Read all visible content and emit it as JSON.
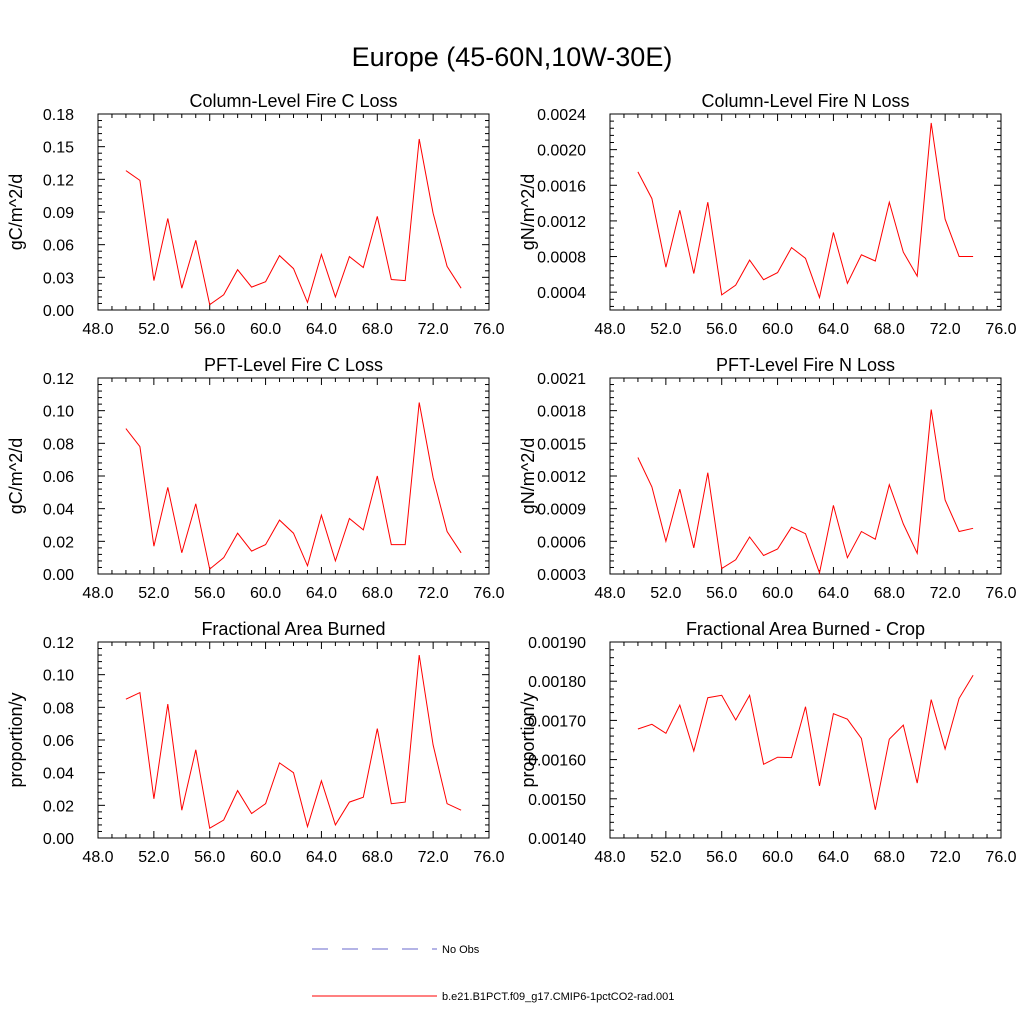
{
  "figure": {
    "title": "Europe (45-60N,10W-30E)"
  },
  "legend": {
    "items": [
      {
        "label": "No Obs",
        "color": "#6a6acd",
        "dash": true
      },
      {
        "label": "b.e21.B1PCT.f09_g17.CMIP6-1pctCO2-rad.001",
        "color": "#ff0000",
        "dash": false
      }
    ]
  },
  "chart_data": [
    {
      "type": "line",
      "title": "Column-Level Fire C Loss",
      "ylabel": "gC/m^2/d",
      "xlim": [
        48,
        76
      ],
      "ylim": [
        0,
        0.18
      ],
      "xticks": [
        "48.0",
        "52.0",
        "56.0",
        "60.0",
        "64.0",
        "68.0",
        "72.0",
        "76.0"
      ],
      "yticks": [
        "0.00",
        "0.03",
        "0.06",
        "0.09",
        "0.12",
        "0.15",
        "0.18"
      ],
      "x": [
        50,
        51,
        52,
        53,
        54,
        55,
        56,
        57,
        58,
        59,
        60,
        61,
        62,
        63,
        64,
        65,
        66,
        67,
        68,
        69,
        70,
        71,
        72,
        73,
        74
      ],
      "series": [
        {
          "name": "b.e21.B1PCT.f09_g17.CMIP6-1pctCO2-rad.001",
          "color": "#ff0000",
          "values": [
            0.128,
            0.119,
            0.027,
            0.084,
            0.02,
            0.064,
            0.005,
            0.014,
            0.037,
            0.021,
            0.026,
            0.05,
            0.038,
            0.007,
            0.051,
            0.012,
            0.049,
            0.039,
            0.086,
            0.028,
            0.027,
            0.157,
            0.089,
            0.04,
            0.02
          ]
        }
      ]
    },
    {
      "type": "line",
      "title": "Column-Level Fire N Loss",
      "ylabel": "gN/m^2/d",
      "xlim": [
        48,
        76
      ],
      "ylim": [
        0.0002,
        0.0024
      ],
      "xticks": [
        "48.0",
        "52.0",
        "56.0",
        "60.0",
        "64.0",
        "68.0",
        "72.0",
        "76.0"
      ],
      "yticks": [
        "0.0004",
        "0.0008",
        "0.0012",
        "0.0016",
        "0.0020",
        "0.0024"
      ],
      "x": [
        50,
        51,
        52,
        53,
        54,
        55,
        56,
        57,
        58,
        59,
        60,
        61,
        62,
        63,
        64,
        65,
        66,
        67,
        68,
        69,
        70,
        71,
        72,
        73,
        74
      ],
      "series": [
        {
          "name": "b.e21.B1PCT.f09_g17.CMIP6-1pctCO2-rad.001",
          "color": "#ff0000",
          "values": [
            0.00175,
            0.00145,
            0.00068,
            0.00132,
            0.00061,
            0.00141,
            0.00037,
            0.00048,
            0.00076,
            0.00054,
            0.00062,
            0.0009,
            0.00078,
            0.00034,
            0.00107,
            0.0005,
            0.00082,
            0.00075,
            0.00141,
            0.00085,
            0.00058,
            0.0023,
            0.00122,
            0.0008,
            0.0008
          ]
        }
      ]
    },
    {
      "type": "line",
      "title": "PFT-Level Fire C Loss",
      "ylabel": "gC/m^2/d",
      "xlim": [
        48,
        76
      ],
      "ylim": [
        0,
        0.12
      ],
      "xticks": [
        "48.0",
        "52.0",
        "56.0",
        "60.0",
        "64.0",
        "68.0",
        "72.0",
        "76.0"
      ],
      "yticks": [
        "0.00",
        "0.02",
        "0.04",
        "0.06",
        "0.08",
        "0.10",
        "0.12"
      ],
      "x": [
        50,
        51,
        52,
        53,
        54,
        55,
        56,
        57,
        58,
        59,
        60,
        61,
        62,
        63,
        64,
        65,
        66,
        67,
        68,
        69,
        70,
        71,
        72,
        73,
        74
      ],
      "series": [
        {
          "name": "b.e21.B1PCT.f09_g17.CMIP6-1pctCO2-rad.001",
          "color": "#ff0000",
          "values": [
            0.089,
            0.078,
            0.017,
            0.053,
            0.013,
            0.043,
            0.003,
            0.01,
            0.025,
            0.014,
            0.018,
            0.033,
            0.025,
            0.005,
            0.036,
            0.008,
            0.034,
            0.027,
            0.06,
            0.018,
            0.018,
            0.105,
            0.059,
            0.026,
            0.013
          ]
        }
      ]
    },
    {
      "type": "line",
      "title": "PFT-Level Fire N Loss",
      "ylabel": "gN/m^2/d",
      "xlim": [
        48,
        76
      ],
      "ylim": [
        0.0003,
        0.0021
      ],
      "xticks": [
        "48.0",
        "52.0",
        "56.0",
        "60.0",
        "64.0",
        "68.0",
        "72.0",
        "76.0"
      ],
      "yticks": [
        "0.0003",
        "0.0006",
        "0.0009",
        "0.0012",
        "0.0015",
        "0.0018",
        "0.0021"
      ],
      "x": [
        50,
        51,
        52,
        53,
        54,
        55,
        56,
        57,
        58,
        59,
        60,
        61,
        62,
        63,
        64,
        65,
        66,
        67,
        68,
        69,
        70,
        71,
        72,
        73,
        74
      ],
      "series": [
        {
          "name": "b.e21.B1PCT.f09_g17.CMIP6-1pctCO2-rad.001",
          "color": "#ff0000",
          "values": [
            0.00137,
            0.0011,
            0.0006,
            0.00108,
            0.00054,
            0.00123,
            0.00035,
            0.00043,
            0.00064,
            0.00047,
            0.00053,
            0.00073,
            0.00067,
            0.00031,
            0.00093,
            0.00045,
            0.00069,
            0.00062,
            0.00112,
            0.00076,
            0.00049,
            0.00181,
            0.00098,
            0.00069,
            0.00072
          ]
        }
      ]
    },
    {
      "type": "line",
      "title": "Fractional Area Burned",
      "ylabel": "proportion/y",
      "xlim": [
        48,
        76
      ],
      "ylim": [
        0,
        0.12
      ],
      "xticks": [
        "48.0",
        "52.0",
        "56.0",
        "60.0",
        "64.0",
        "68.0",
        "72.0",
        "76.0"
      ],
      "yticks": [
        "0.00",
        "0.02",
        "0.04",
        "0.06",
        "0.08",
        "0.10",
        "0.12"
      ],
      "x": [
        50,
        51,
        52,
        53,
        54,
        55,
        56,
        57,
        58,
        59,
        60,
        61,
        62,
        63,
        64,
        65,
        66,
        67,
        68,
        69,
        70,
        71,
        72,
        73,
        74
      ],
      "series": [
        {
          "name": "b.e21.B1PCT.f09_g17.CMIP6-1pctCO2-rad.001",
          "color": "#ff0000",
          "values": [
            0.085,
            0.089,
            0.024,
            0.082,
            0.017,
            0.054,
            0.006,
            0.011,
            0.029,
            0.015,
            0.021,
            0.046,
            0.04,
            0.007,
            0.035,
            0.008,
            0.022,
            0.025,
            0.067,
            0.021,
            0.022,
            0.112,
            0.057,
            0.021,
            0.017
          ]
        }
      ]
    },
    {
      "type": "line",
      "title": "Fractional Area Burned - Crop",
      "ylabel": "proportion/y",
      "xlim": [
        48,
        76
      ],
      "ylim": [
        0.0014,
        0.0019
      ],
      "xticks": [
        "48.0",
        "52.0",
        "56.0",
        "60.0",
        "64.0",
        "68.0",
        "72.0",
        "76.0"
      ],
      "yticks": [
        "0.00140",
        "0.00150",
        "0.00160",
        "0.00170",
        "0.00180",
        "0.00190"
      ],
      "x": [
        50,
        51,
        52,
        53,
        54,
        55,
        56,
        57,
        58,
        59,
        60,
        61,
        62,
        63,
        64,
        65,
        66,
        67,
        68,
        69,
        70,
        71,
        72,
        73,
        74
      ],
      "series": [
        {
          "name": "b.e21.B1PCT.f09_g17.CMIP6-1pctCO2-rad.001",
          "color": "#ff0000",
          "values": [
            0.001678,
            0.00169,
            0.001667,
            0.001739,
            0.001622,
            0.001758,
            0.001764,
            0.001701,
            0.001764,
            0.001588,
            0.001606,
            0.001605,
            0.001735,
            0.001533,
            0.001717,
            0.001703,
            0.001654,
            0.001472,
            0.001652,
            0.001688,
            0.00154,
            0.001753,
            0.001627,
            0.001756,
            0.001815
          ]
        }
      ]
    }
  ]
}
